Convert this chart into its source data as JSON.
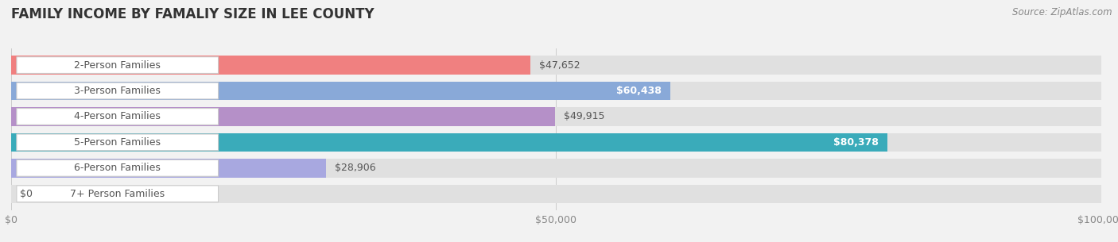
{
  "title": "FAMILY INCOME BY FAMALIY SIZE IN LEE COUNTY",
  "source": "Source: ZipAtlas.com",
  "categories": [
    "2-Person Families",
    "3-Person Families",
    "4-Person Families",
    "5-Person Families",
    "6-Person Families",
    "7+ Person Families"
  ],
  "values": [
    47652,
    60438,
    49915,
    80378,
    28906,
    0
  ],
  "bar_colors": [
    "#f08080",
    "#89a9d8",
    "#b590c8",
    "#3aabba",
    "#a8a8e0",
    "#f4a0b8"
  ],
  "value_labels": [
    "$47,652",
    "$60,438",
    "$49,915",
    "$80,378",
    "$28,906",
    "$0"
  ],
  "label_inside": [
    false,
    true,
    false,
    true,
    false,
    false
  ],
  "xlim": [
    0,
    100000
  ],
  "xtick_values": [
    0,
    50000,
    100000
  ],
  "xtick_labels": [
    "$0",
    "$50,000",
    "$100,000"
  ],
  "background_color": "#f2f2f2",
  "bar_bg_color": "#e0e0e0",
  "title_color": "#333333",
  "title_fontsize": 12,
  "label_fontsize": 9,
  "value_fontsize": 9,
  "source_fontsize": 8.5
}
